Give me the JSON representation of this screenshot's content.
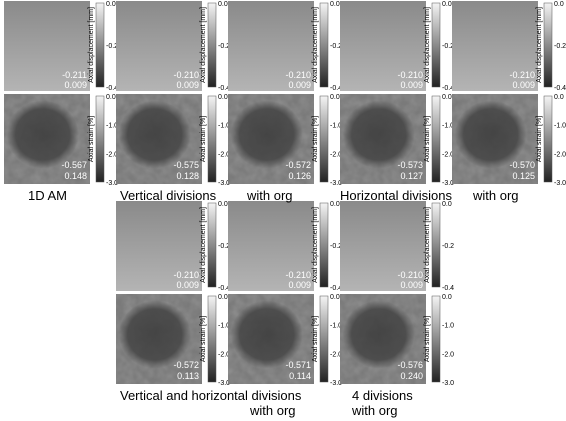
{
  "panels": [
    {
      "displacement": {
        "mean": "-0.211",
        "std": "0.009"
      },
      "strain": {
        "mean": "-0.567",
        "std": "0.148"
      }
    },
    {
      "displacement": {
        "mean": "-0.210",
        "std": "0.009"
      },
      "strain": {
        "mean": "-0.575",
        "std": "0.128"
      }
    },
    {
      "displacement": {
        "mean": "-0.210",
        "std": "0.009"
      },
      "strain": {
        "mean": "-0.572",
        "std": "0.126"
      }
    },
    {
      "displacement": {
        "mean": "-0.210",
        "std": "0.009"
      },
      "strain": {
        "mean": "-0.573",
        "std": "0.127"
      }
    },
    {
      "displacement": {
        "mean": "-0.210",
        "std": "0.009"
      },
      "strain": {
        "mean": "-0.570",
        "std": "0.125"
      }
    },
    {
      "displacement": {
        "mean": "-0.210",
        "std": "0.009"
      },
      "strain": {
        "mean": "-0.572",
        "std": "0.113"
      }
    },
    {
      "displacement": {
        "mean": "-0.210",
        "std": "0.009"
      },
      "strain": {
        "mean": "-0.571",
        "std": "0.114"
      }
    },
    {
      "displacement": {
        "mean": "-0.210",
        "std": "0.009"
      },
      "strain": {
        "mean": "-0.576",
        "std": "0.240"
      }
    }
  ],
  "colorbars": {
    "displacement": {
      "label": "Axial displacement [mm]",
      "ticks": [
        "0.0",
        "-0.2",
        "-0.4"
      ]
    },
    "strain": {
      "label": "Axial strain [%]",
      "ticks": [
        "0.0",
        "-1.0",
        "-2.0",
        "-3.0"
      ]
    }
  },
  "captions": [
    "1D AM",
    "Vertical divisions",
    "with org",
    "Horizontal divisions",
    "with org",
    "Vertical and horizontal divisions",
    "with org",
    "4 divisions",
    "with org"
  ]
}
